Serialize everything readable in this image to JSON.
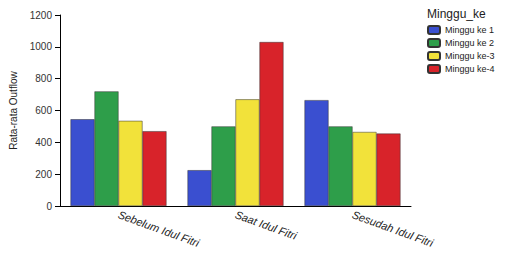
{
  "chart_data": {
    "type": "bar",
    "y_label": "Rata-rata Outflow",
    "legend_title": "Minggu_ke",
    "categories": [
      "Sebelum Idul Fitri",
      "Saat Idul Fitri",
      "Sesudah Idul Fitri"
    ],
    "series": [
      {
        "name": "Minggu ke 1",
        "color": "#3a4fd0",
        "values": [
          545,
          225,
          665
        ]
      },
      {
        "name": "Minggu ke 2",
        "color": "#2e9e4a",
        "values": [
          720,
          500,
          500
        ]
      },
      {
        "name": "Minggu ke-3",
        "color": "#f2e23a",
        "values": [
          535,
          670,
          465
        ]
      },
      {
        "name": "Minggu ke-4",
        "color": "#d8232a",
        "values": [
          470,
          1030,
          455
        ]
      }
    ],
    "ylim": [
      0,
      1200
    ],
    "yticks": [
      0,
      200,
      400,
      600,
      800,
      1000,
      1200
    ],
    "grid": false,
    "legend": "upper right"
  }
}
